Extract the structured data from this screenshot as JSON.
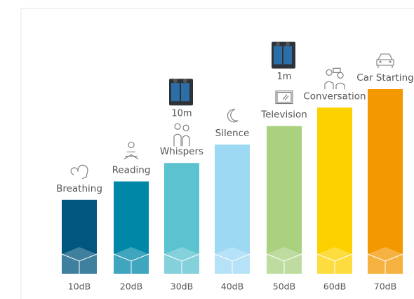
{
  "chart_data": {
    "type": "bar",
    "categories": [
      "10dB",
      "20dB",
      "30dB",
      "40dB",
      "50dB",
      "60dB",
      "70dB"
    ],
    "values": [
      10,
      20,
      30,
      40,
      50,
      60,
      70
    ],
    "labels": [
      "Breathing",
      "Reading",
      "Whispers",
      "Silence",
      "Television",
      "Conversation",
      "Car Starting"
    ],
    "colors": [
      "#00567f",
      "#0087a8",
      "#5bc2d0",
      "#9dd9f3",
      "#a9d17f",
      "#fdd000",
      "#f39800"
    ],
    "annotations": [
      "10m",
      "1m"
    ],
    "ylim": [
      -30,
      70
    ]
  }
}
